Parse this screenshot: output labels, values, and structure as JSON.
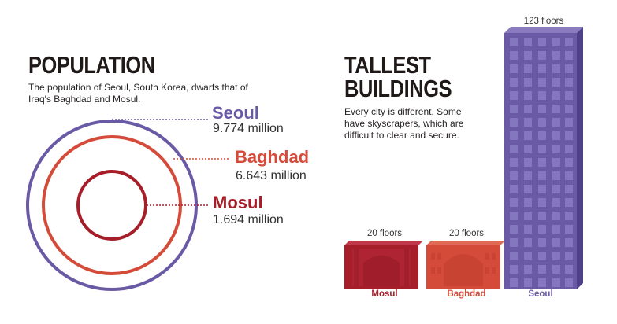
{
  "population": {
    "title": "POPULATION",
    "description_line1": "The population of Seoul, South Korea, dwarfs that of",
    "description_line2": "Iraq's Baghdad and Mosul.",
    "cities": [
      {
        "name": "Seoul",
        "value": "9.774 million",
        "population_millions": 9.774,
        "color": "#6a5aa6"
      },
      {
        "name": "Baghdad",
        "value": "6.643 million",
        "population_millions": 6.643,
        "color": "#d44b3a"
      },
      {
        "name": "Mosul",
        "value": "1.694 million",
        "population_millions": 1.694,
        "color": "#a61e2a"
      }
    ]
  },
  "buildings": {
    "title_line1": "TALLEST",
    "title_line2": "BUILDINGS",
    "description_line1": "Every city is different. Some",
    "description_line2": "have skyscrapers, which are",
    "description_line3": "difficult to clear and secure.",
    "items": [
      {
        "city": "Mosul",
        "floors_label": "20 floors",
        "floors": 20,
        "color": "#a61e2a"
      },
      {
        "city": "Baghdad",
        "floors_label": "20 floors",
        "floors": 20,
        "color": "#d44b3a"
      },
      {
        "city": "Seoul",
        "floors_label": "123 floors",
        "floors": 123,
        "color": "#6a5aa6"
      }
    ]
  }
}
